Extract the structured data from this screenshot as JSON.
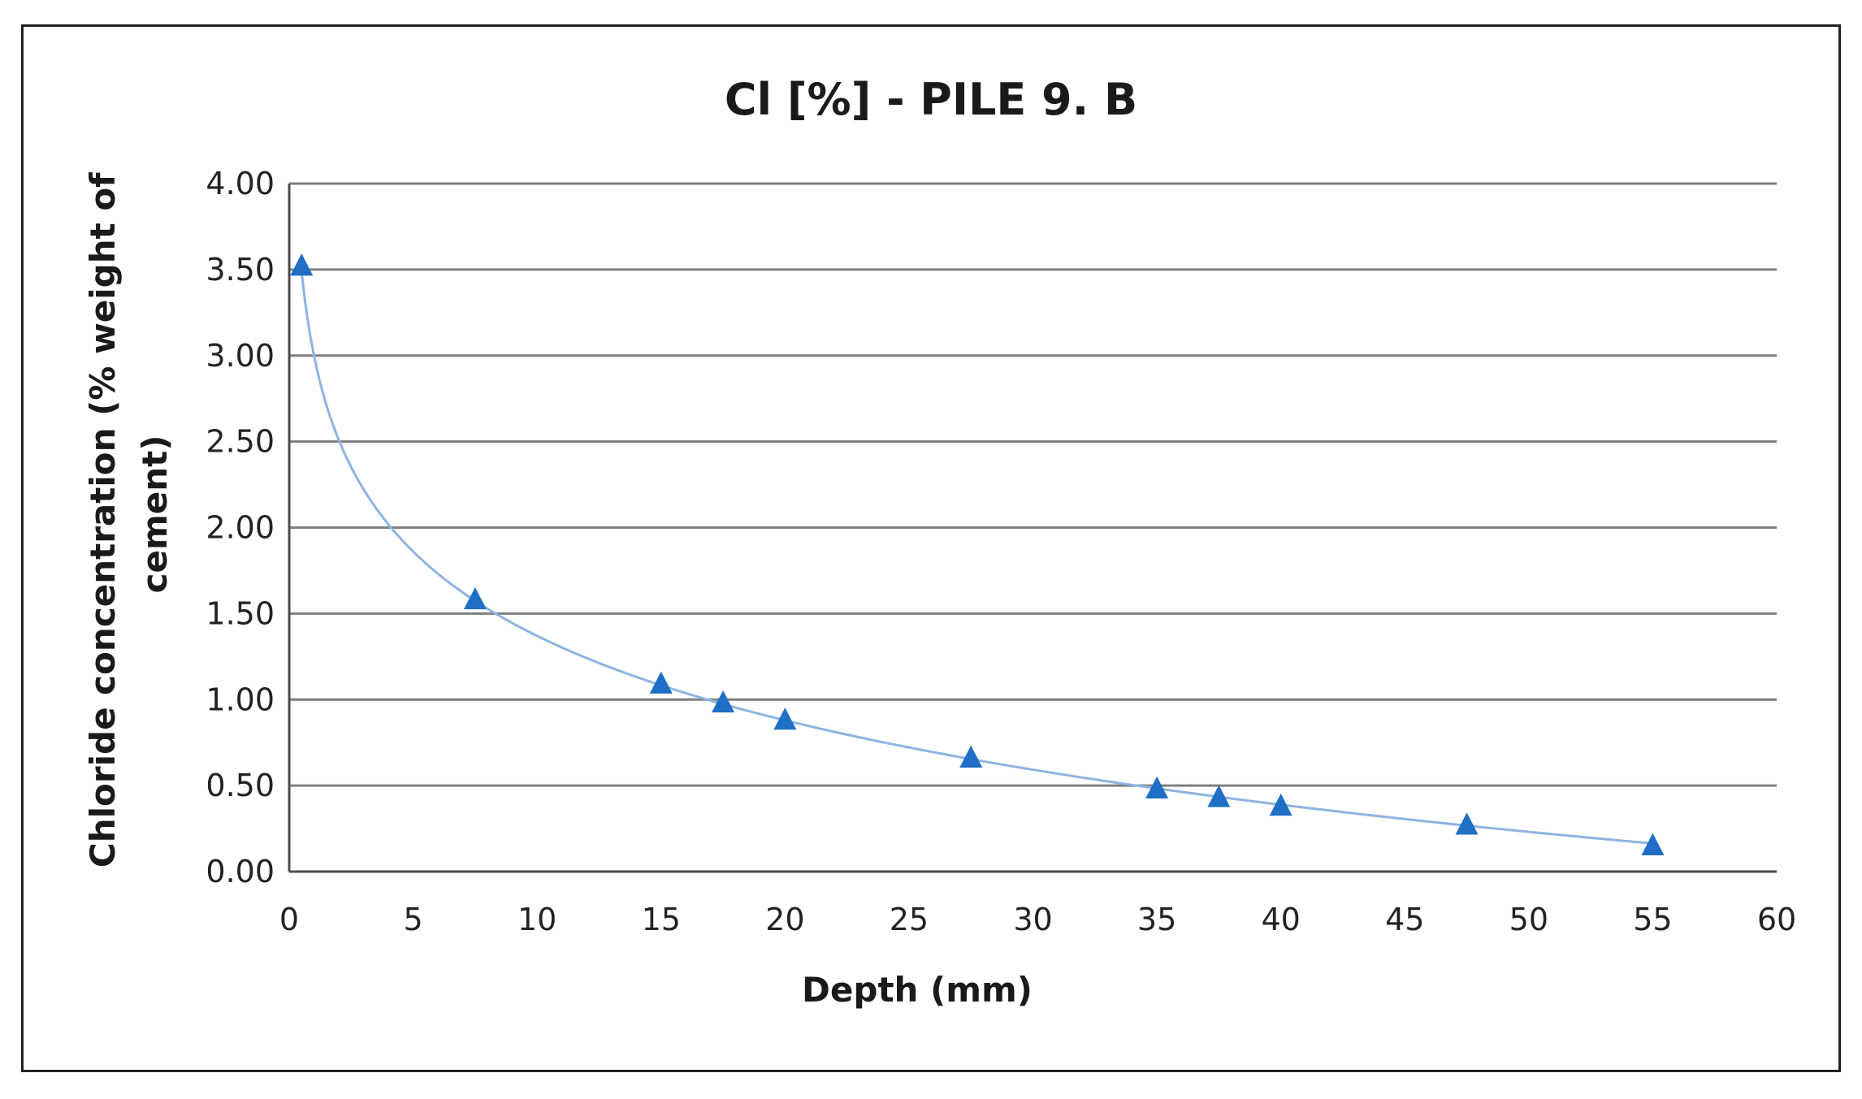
{
  "chart_data": {
    "type": "scatter",
    "title": "Cl [%] - PILE 9. B",
    "xlabel": "Depth (mm)",
    "ylabel_lines": [
      "Chloride concentration (% weight of",
      "cement)"
    ],
    "xlim": [
      0,
      60
    ],
    "ylim": [
      0,
      4
    ],
    "x_ticks": [
      0,
      5,
      10,
      15,
      20,
      25,
      30,
      35,
      40,
      45,
      50,
      55,
      60
    ],
    "x_tick_labels": [
      "0",
      "5",
      "10",
      "15",
      "20",
      "25",
      "30",
      "35",
      "40",
      "45",
      "50",
      "55",
      "60"
    ],
    "y_ticks": [
      0,
      0.5,
      1,
      1.5,
      2,
      2.5,
      3,
      3.5,
      4
    ],
    "y_tick_labels": [
      "0.00",
      "0.50",
      "1.00",
      "1.50",
      "2.00",
      "2.50",
      "3.00",
      "3.50",
      "4.00"
    ],
    "grid": "horizontal",
    "series": [
      {
        "name": "Cl [%]",
        "marker": "triangle",
        "color": "#1f6fc6",
        "x": [
          0.5,
          7.5,
          15,
          17.5,
          20,
          27.5,
          35,
          37.5,
          40,
          47.5,
          55
        ],
        "y": [
          3.52,
          1.58,
          1.09,
          0.98,
          0.88,
          0.66,
          0.48,
          0.43,
          0.38,
          0.27,
          0.15
        ]
      }
    ],
    "trendline": {
      "type": "logarithmic",
      "color": "#8db4e2",
      "intercept": 3.0,
      "slope": -0.7079,
      "x_range": [
        0.5,
        55
      ]
    }
  }
}
